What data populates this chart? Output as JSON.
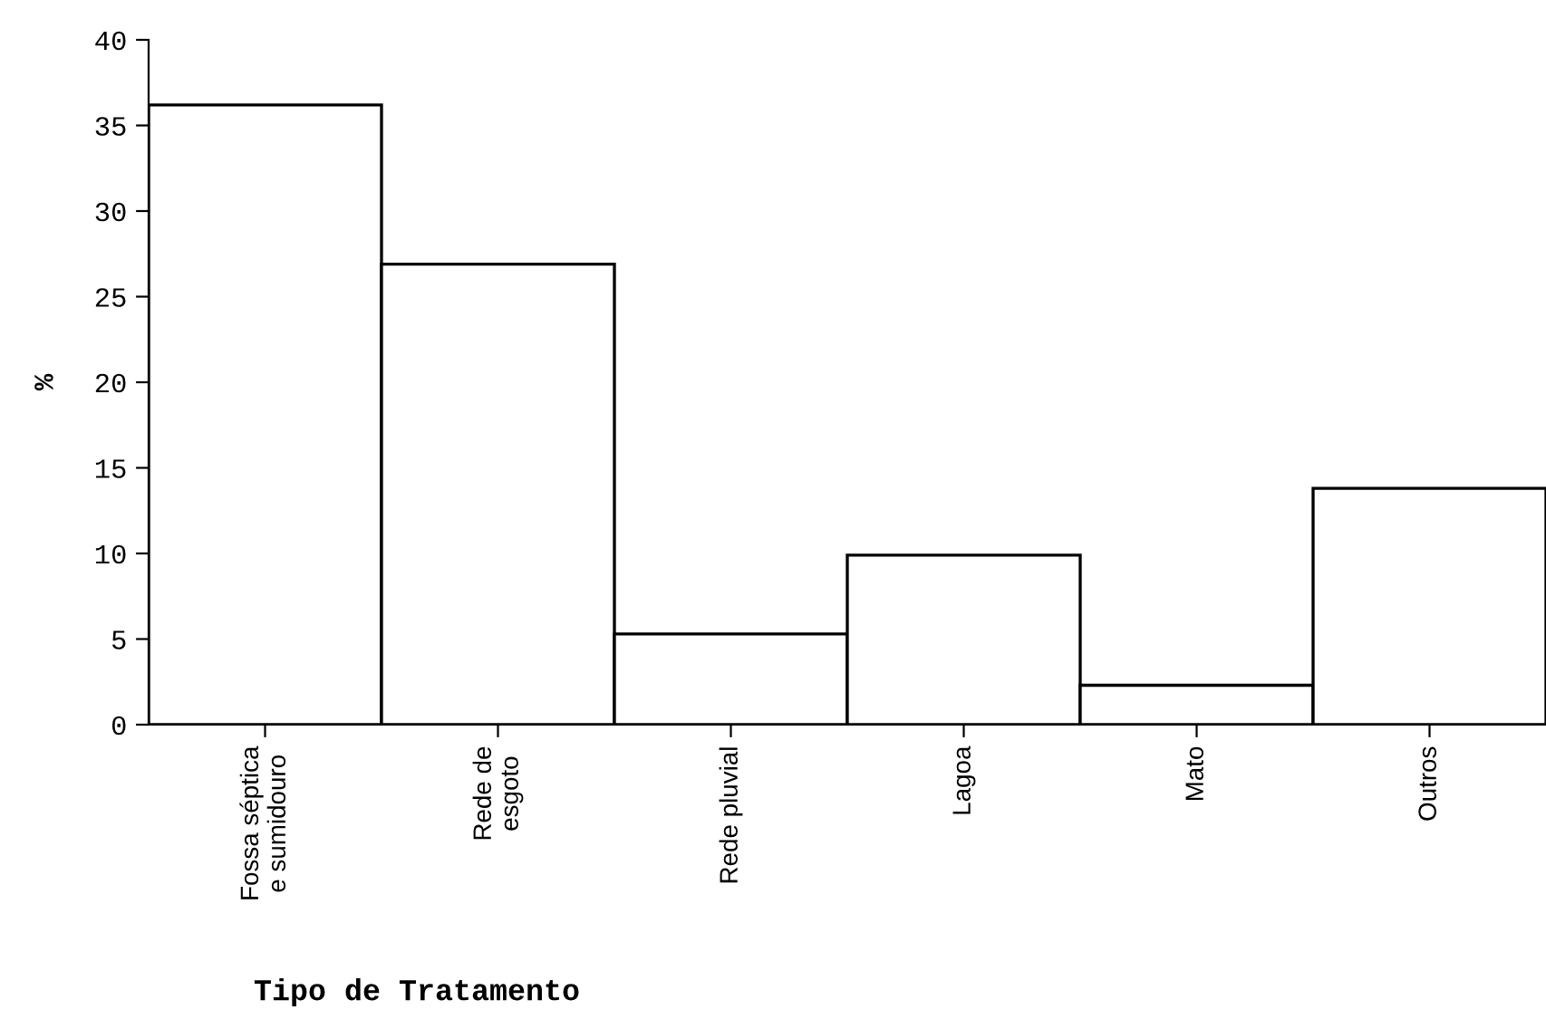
{
  "chart_data": {
    "type": "bar",
    "xlabel": "Tipo de Tratamento",
    "ylabel": "%",
    "categories": [
      "Fossa séptica\ne sumidouro",
      "Rede de\nesgoto",
      "Rede pluvial",
      "Lagoa",
      "Mato",
      "Outros"
    ],
    "values": [
      36.2,
      26.9,
      5.3,
      9.9,
      2.3,
      13.8
    ],
    "color": "#ffffff",
    "ylim": [
      0,
      40
    ],
    "yticks": [
      0,
      5,
      10,
      15,
      20,
      25,
      30,
      35,
      40
    ],
    "grid": false
  }
}
